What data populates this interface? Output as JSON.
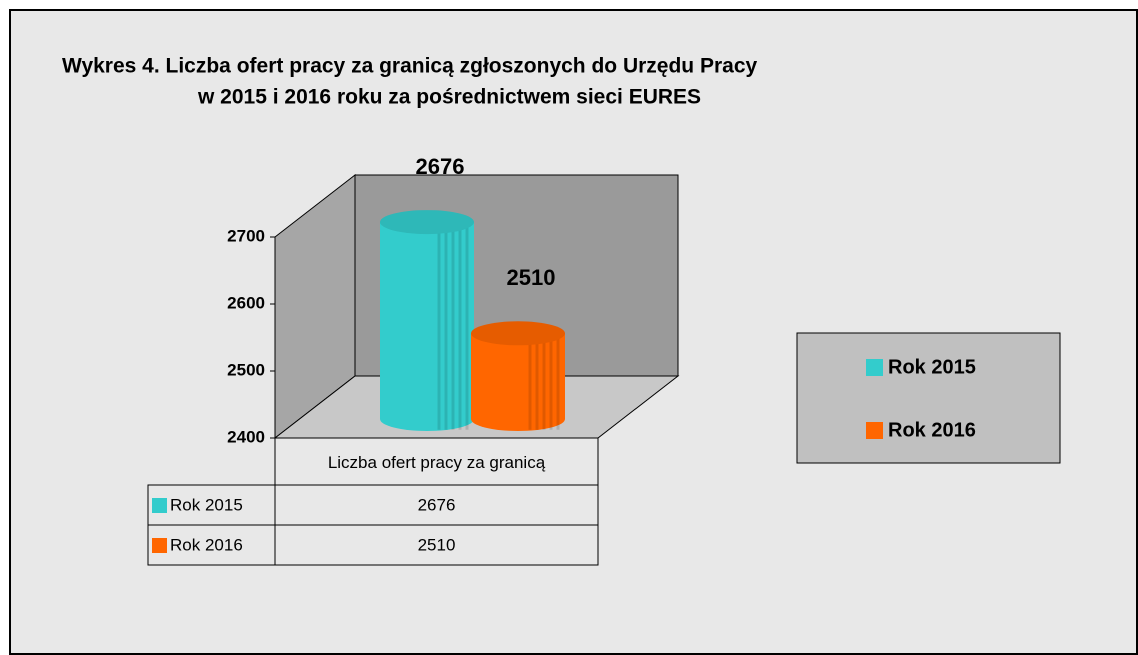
{
  "chart_data": {
    "type": "bar3d",
    "title": [
      "Wykres 4. Liczba ofert pracy za granicą zgłoszonych do Urzędu Pracy",
      "w 2015 i 2016 roku za pośrednictwem sieci EURES"
    ],
    "categories": [
      "Liczba ofert pracy za granicą"
    ],
    "series": [
      {
        "name": "Rok 2015",
        "color": "#33cccc",
        "values": [
          2676
        ]
      },
      {
        "name": "Rok 2016",
        "color": "#ff6600",
        "values": [
          2510
        ]
      }
    ],
    "ylim": [
      2400,
      2700
    ],
    "yticks": [
      2400,
      2500,
      2600,
      2700
    ],
    "legend": "right",
    "data_table": true
  }
}
